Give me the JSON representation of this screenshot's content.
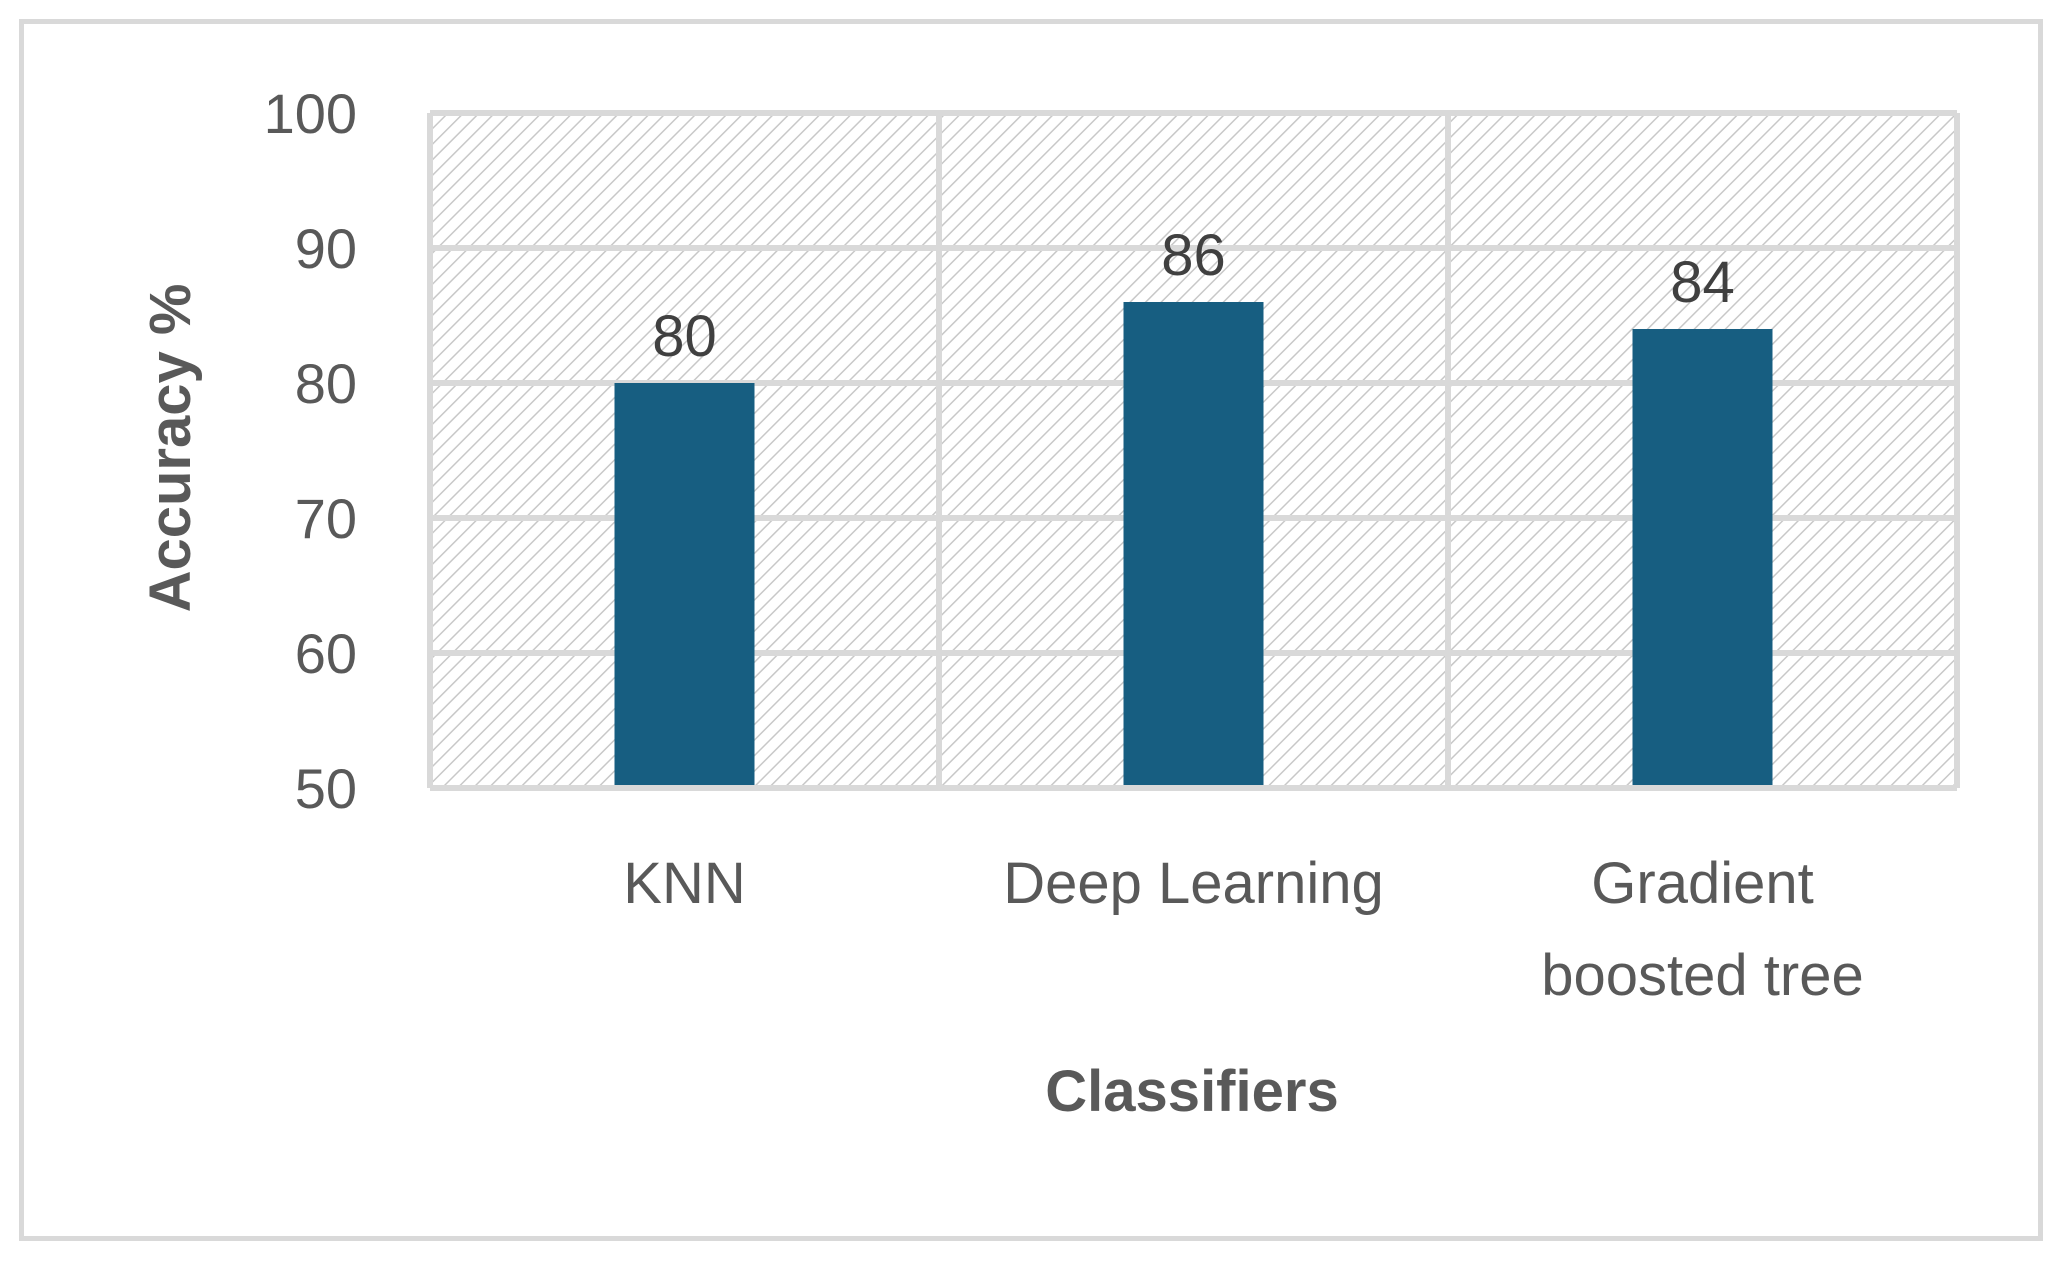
{
  "chart_data": {
    "type": "bar",
    "categories": [
      "KNN",
      "Deep Learning",
      "Gradient boosted tree"
    ],
    "category_label_lines": [
      [
        "KNN"
      ],
      [
        "Deep Learning"
      ],
      [
        "Gradient",
        "boosted tree"
      ]
    ],
    "values": [
      80,
      86,
      84
    ],
    "data_labels": [
      "80",
      "86",
      "84"
    ],
    "title": "",
    "xlabel": "Classifiers",
    "ylabel": "Accuracy %",
    "ylim": [
      50,
      100
    ],
    "yticks": [
      50,
      60,
      70,
      80,
      90,
      100
    ],
    "ytick_labels": [
      "50",
      "60",
      "70",
      "80",
      "90",
      "100"
    ],
    "grid": true,
    "plot_background": "hatched",
    "legend": "none",
    "colors": {
      "bar": "#175e81",
      "text": "#595959",
      "data_label": "#404040",
      "grid": "#d9d9d9",
      "hatch": "#c8c8c8",
      "frame": "#d9d9d9"
    }
  }
}
